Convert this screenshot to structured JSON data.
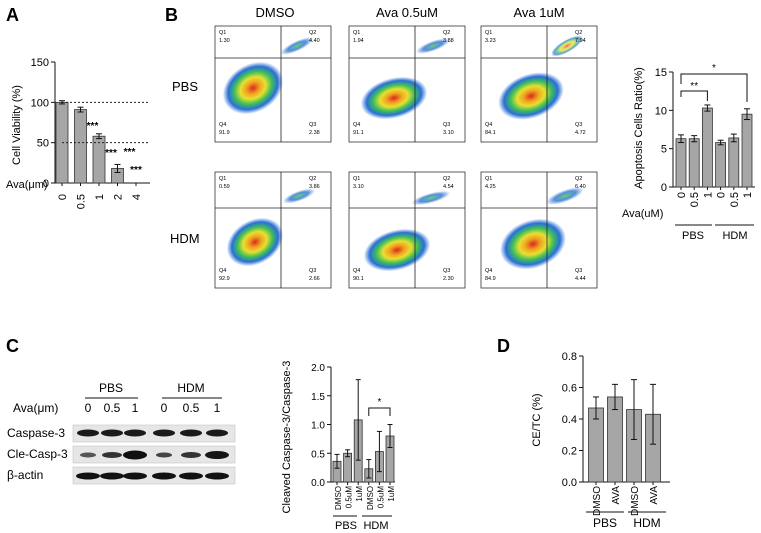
{
  "panels": {
    "A": {
      "label": "A",
      "ylabel": "Cell Viability (%)",
      "xlabel": "Ava(μm)",
      "yticks": [
        "0",
        "50",
        "100",
        "150"
      ],
      "categories": [
        "0",
        "0.5",
        "1",
        "2",
        "4"
      ],
      "values": [
        100,
        91,
        58,
        18,
        0
      ],
      "errors": [
        2,
        3,
        3,
        5,
        0
      ],
      "stars": [
        "",
        "***",
        "***",
        "***",
        "***"
      ],
      "reference_lines": [
        100,
        50
      ]
    },
    "B": {
      "label": "B",
      "columns": [
        "DMSO",
        "Ava 0.5uM",
        "Ava 1uM"
      ],
      "rows": [
        "PBS",
        "HDM"
      ],
      "quadrant_names": [
        "Q1",
        "Q2",
        "Q3",
        "Q4"
      ],
      "flow": [
        [
          {
            "q1": "1.30",
            "q2": "4.40",
            "q3": "2.38",
            "q4": "91.9"
          },
          {
            "q1": "1.94",
            "q2": "3.88",
            "q3": "3.10",
            "q4": "91.1"
          },
          {
            "q1": "3.23",
            "q2": "7.94",
            "q3": "4.72",
            "q4": "84.1"
          }
        ],
        [
          {
            "q1": "0.59",
            "q2": "3.86",
            "q3": "2.66",
            "q4": "92.9"
          },
          {
            "q1": "3.10",
            "q2": "4.54",
            "q3": "2.30",
            "q4": "90.1"
          },
          {
            "q1": "4.25",
            "q2": "6.40",
            "q3": "4.44",
            "q4": "84.9"
          }
        ]
      ],
      "chart": {
        "ylabel": "Apoptosis Cells Ratio(%)",
        "xlabel": "Ava(uM)",
        "yticks": [
          "0",
          "5",
          "10",
          "15"
        ],
        "categories": [
          "0",
          "0.5",
          "1",
          "0",
          "0.5",
          "1"
        ],
        "groups": [
          "PBS",
          "HDM"
        ],
        "values": [
          6.3,
          6.3,
          10.3,
          5.8,
          6.4,
          9.5
        ],
        "errors": [
          0.5,
          0.4,
          0.4,
          0.3,
          0.5,
          0.7
        ],
        "sig": [
          "**",
          "*"
        ]
      }
    },
    "C": {
      "label": "C",
      "group_labels": [
        "PBS",
        "HDM"
      ],
      "ava_label": "Ava(μm)",
      "lane_doses": [
        "0",
        "0.5",
        "1",
        "0",
        "0.5",
        "1"
      ],
      "bands": [
        "Caspase-3",
        "Cle-Casp-3",
        "β-actin"
      ],
      "chart": {
        "ylabel": "Cleaved Caspase-3/Caspase-3",
        "yticks": [
          "0.0",
          "0.5",
          "1.0",
          "1.5",
          "2.0"
        ],
        "categories": [
          "DMSO",
          "0.5uM",
          "1uM",
          "DMSO",
          "0.5uM",
          "1uM"
        ],
        "groups": [
          "PBS",
          "HDM"
        ],
        "values": [
          0.36,
          0.5,
          1.08,
          0.23,
          0.53,
          0.8
        ],
        "errors": [
          0.12,
          0.06,
          0.7,
          0.16,
          0.35,
          0.2
        ],
        "sig": "*"
      }
    },
    "D": {
      "label": "D",
      "chart": {
        "ylabel": "CE/TC (%)",
        "yticks": [
          "0.0",
          "0.2",
          "0.4",
          "0.6",
          "0.8"
        ],
        "categories": [
          "DMSO",
          "AVA",
          "DMSO",
          "AVA"
        ],
        "groups": [
          "PBS",
          "HDM"
        ],
        "values": [
          0.47,
          0.54,
          0.46,
          0.43
        ],
        "errors": [
          0.07,
          0.08,
          0.19,
          0.19
        ]
      }
    }
  },
  "chart_data": [
    {
      "type": "bar",
      "panel": "A",
      "title": "",
      "xlabel": "Ava(μm)",
      "ylabel": "Cell Viability (%)",
      "categories": [
        "0",
        "0.5",
        "1",
        "2",
        "4"
      ],
      "values": [
        100,
        91,
        58,
        18,
        0
      ],
      "errors": [
        2,
        3,
        3,
        5,
        0
      ],
      "ylim": [
        0,
        150
      ]
    },
    {
      "type": "bar",
      "panel": "B",
      "title": "",
      "xlabel": "Ava(uM)",
      "ylabel": "Apoptosis Cells Ratio(%)",
      "categories": [
        "PBS 0",
        "PBS 0.5",
        "PBS 1",
        "HDM 0",
        "HDM 0.5",
        "HDM 1"
      ],
      "values": [
        6.3,
        6.3,
        10.3,
        5.8,
        6.4,
        9.5
      ],
      "errors": [
        0.5,
        0.4,
        0.4,
        0.3,
        0.5,
        0.7
      ],
      "ylim": [
        0,
        15
      ]
    },
    {
      "type": "bar",
      "panel": "C",
      "title": "",
      "xlabel": "",
      "ylabel": "Cleaved Caspase-3/Caspase-3",
      "categories": [
        "PBS DMSO",
        "PBS 0.5uM",
        "PBS 1uM",
        "HDM DMSO",
        "HDM 0.5uM",
        "HDM 1uM"
      ],
      "values": [
        0.36,
        0.5,
        1.08,
        0.23,
        0.53,
        0.8
      ],
      "errors": [
        0.12,
        0.06,
        0.7,
        0.16,
        0.35,
        0.2
      ],
      "ylim": [
        0,
        2.0
      ]
    },
    {
      "type": "bar",
      "panel": "D",
      "title": "",
      "xlabel": "",
      "ylabel": "CE/TC (%)",
      "categories": [
        "PBS DMSO",
        "PBS AVA",
        "HDM DMSO",
        "HDM AVA"
      ],
      "values": [
        0.47,
        0.54,
        0.46,
        0.43
      ],
      "errors": [
        0.07,
        0.08,
        0.19,
        0.19
      ],
      "ylim": [
        0,
        0.8
      ]
    }
  ]
}
